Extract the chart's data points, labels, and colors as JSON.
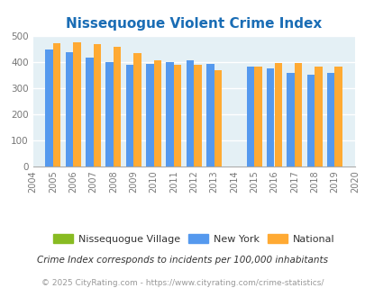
{
  "title": "Nissequogue Violent Crime Index",
  "years": [
    2004,
    2005,
    2006,
    2007,
    2008,
    2009,
    2010,
    2011,
    2012,
    2013,
    2014,
    2015,
    2016,
    2017,
    2018,
    2019,
    2020
  ],
  "bar_years": [
    2005,
    2006,
    2007,
    2008,
    2009,
    2010,
    2011,
    2012,
    2013,
    2015,
    2016,
    2017,
    2018,
    2019
  ],
  "nissequogue": [
    0,
    0,
    0,
    0,
    0,
    0,
    0,
    0,
    0,
    0,
    0,
    0,
    0,
    0
  ],
  "new_york": [
    447,
    437,
    415,
    400,
    387,
    393,
    400,
    407,
    391,
    380,
    376,
    357,
    350,
    357
  ],
  "national": [
    470,
    473,
    468,
    456,
    433,
    404,
    388,
    387,
    367,
    383,
    397,
    394,
    381,
    382
  ],
  "bar_width": 0.38,
  "ylim": [
    0,
    500
  ],
  "yticks": [
    0,
    100,
    200,
    300,
    400,
    500
  ],
  "color_nissequogue": "#88bb22",
  "color_new_york": "#5599ee",
  "color_national": "#ffaa33",
  "bg_color": "#e4f0f5",
  "title_color": "#1a6db5",
  "legend_label_nissequogue": "Nissequogue Village",
  "legend_label_ny": "New York",
  "legend_label_national": "National",
  "footnote1": "Crime Index corresponds to incidents per 100,000 inhabitants",
  "footnote2": "© 2025 CityRating.com - https://www.cityrating.com/crime-statistics/",
  "grid_color": "#ffffff",
  "tick_color": "#777777",
  "footnote1_color": "#333333",
  "footnote2_color": "#999999"
}
